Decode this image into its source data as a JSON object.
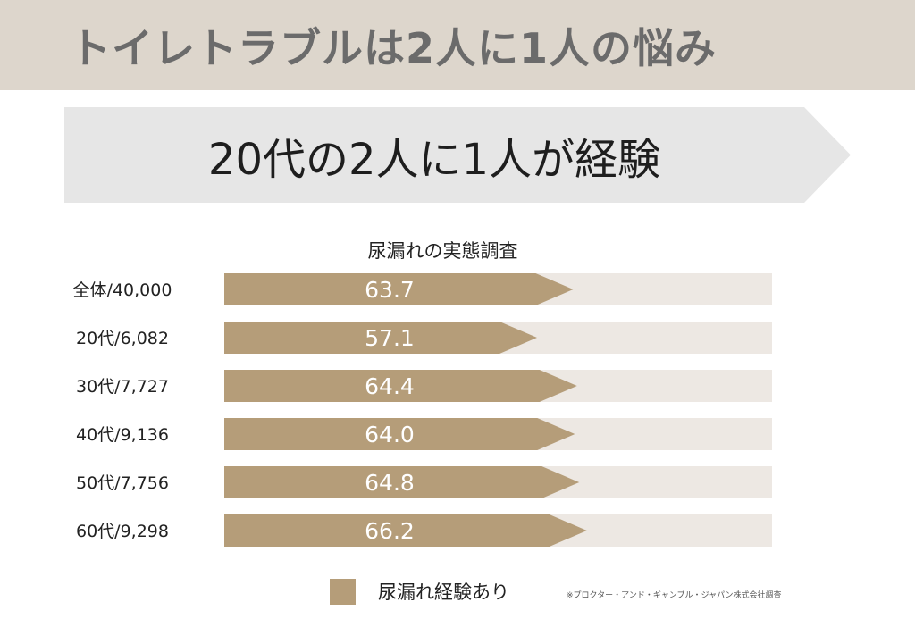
{
  "header": {
    "title": "トイレトラブルは2人に1人の悩み"
  },
  "callout": {
    "text": "20代の2人に1人が経験"
  },
  "footnote": "※プロクター・アンド・ギャンブル・ジャパン株式会社調査",
  "colors": {
    "bar": "#b59d79",
    "track": "#ede8e3",
    "banner": "#ddd6cc",
    "callout": "#e6e6e6"
  },
  "chart_data": {
    "type": "bar",
    "orientation": "horizontal",
    "title": "尿漏れの実態調査",
    "categories": [
      "全体/40,000",
      "20代/6,082",
      "30代/7,727",
      "40代/9,136",
      "50代/7,756",
      "60代/9,298"
    ],
    "series": [
      {
        "name": "尿漏れ経験あり",
        "values": [
          63.7,
          57.1,
          64.4,
          64.0,
          64.8,
          66.2
        ]
      }
    ],
    "data_labels": [
      "63.7",
      "57.1",
      "64.4",
      "64.0",
      "64.8",
      "66.2"
    ],
    "xlim": [
      0,
      100
    ],
    "grid": false,
    "legend": "bottom"
  }
}
